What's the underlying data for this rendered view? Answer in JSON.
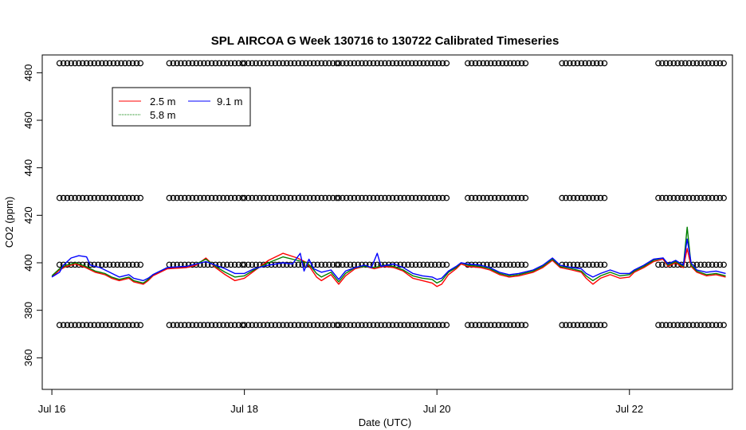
{
  "chart_data": {
    "type": "line",
    "title": "SPL AIRCOA G  Week 130716 to 130722  Calibrated Timeseries",
    "xlabel": "Date (UTC)",
    "ylabel": "CO2 (ppm)",
    "xlim": [
      -0.1,
      7.07
    ],
    "ylim": [
      346.7,
      487.5
    ],
    "x_ticks": [
      {
        "value": 0,
        "label": "Jul 16"
      },
      {
        "value": 2,
        "label": "Jul 18"
      },
      {
        "value": 4,
        "label": "Jul 20"
      },
      {
        "value": 6,
        "label": "Jul 22"
      }
    ],
    "y_ticks": [
      360,
      380,
      400,
      420,
      440,
      460,
      480
    ],
    "grid": false,
    "legend_position": "top-left",
    "series": [
      {
        "name": "2.5 m",
        "color": "#ff0000",
        "points": [
          [
            0.0,
            394.0
          ],
          [
            0.08,
            397.0
          ],
          [
            0.15,
            398.5
          ],
          [
            0.25,
            399.5
          ],
          [
            0.35,
            398.0
          ],
          [
            0.45,
            396.0
          ],
          [
            0.55,
            395.0
          ],
          [
            0.62,
            393.5
          ],
          [
            0.7,
            392.5
          ],
          [
            0.8,
            393.5
          ],
          [
            0.85,
            392.0
          ],
          [
            0.95,
            391.0
          ],
          [
            1.0,
            392.5
          ],
          [
            1.05,
            394.5
          ],
          [
            1.2,
            397.5
          ],
          [
            1.4,
            398.0
          ],
          [
            1.5,
            399.0
          ],
          [
            1.6,
            402.0
          ],
          [
            1.7,
            398.0
          ],
          [
            1.8,
            395.0
          ],
          [
            1.9,
            392.5
          ],
          [
            2.0,
            393.5
          ],
          [
            2.1,
            396.5
          ],
          [
            2.25,
            401.0
          ],
          [
            2.4,
            404.0
          ],
          [
            2.55,
            402.0
          ],
          [
            2.65,
            400.0
          ],
          [
            2.7,
            397.0
          ],
          [
            2.75,
            394.0
          ],
          [
            2.8,
            392.5
          ],
          [
            2.9,
            395.0
          ],
          [
            2.98,
            391.0
          ],
          [
            3.05,
            394.5
          ],
          [
            3.15,
            397.5
          ],
          [
            3.25,
            398.5
          ],
          [
            3.35,
            397.5
          ],
          [
            3.45,
            398.5
          ],
          [
            3.55,
            398.0
          ],
          [
            3.65,
            396.5
          ],
          [
            3.75,
            393.5
          ],
          [
            3.85,
            392.5
          ],
          [
            3.95,
            391.5
          ],
          [
            4.0,
            390.0
          ],
          [
            4.05,
            391.0
          ],
          [
            4.12,
            395.0
          ],
          [
            4.2,
            397.5
          ],
          [
            4.25,
            399.5
          ],
          [
            4.32,
            398.5
          ],
          [
            4.45,
            398.0
          ],
          [
            4.55,
            397.0
          ],
          [
            4.65,
            395.0
          ],
          [
            4.75,
            394.0
          ],
          [
            4.85,
            394.5
          ],
          [
            5.0,
            396.0
          ],
          [
            5.1,
            398.0
          ],
          [
            5.2,
            401.0
          ],
          [
            5.28,
            398.0
          ],
          [
            5.4,
            397.0
          ],
          [
            5.5,
            396.0
          ],
          [
            5.55,
            393.5
          ],
          [
            5.62,
            391.0
          ],
          [
            5.7,
            393.5
          ],
          [
            5.8,
            395.0
          ],
          [
            5.9,
            393.5
          ],
          [
            6.0,
            394.0
          ],
          [
            6.05,
            396.0
          ],
          [
            6.15,
            398.0
          ],
          [
            6.25,
            400.5
          ],
          [
            6.35,
            401.5
          ],
          [
            6.4,
            398.5
          ],
          [
            6.48,
            400.0
          ],
          [
            6.52,
            399.0
          ],
          [
            6.56,
            398.0
          ],
          [
            6.6,
            406.0
          ],
          [
            6.64,
            398.5
          ],
          [
            6.7,
            396.0
          ],
          [
            6.8,
            394.5
          ],
          [
            6.9,
            395.0
          ],
          [
            7.0,
            394.0
          ]
        ]
      },
      {
        "name": "5.8 m",
        "color": "#008000",
        "points": [
          [
            0.0,
            394.5
          ],
          [
            0.08,
            397.5
          ],
          [
            0.15,
            399.0
          ],
          [
            0.25,
            400.0
          ],
          [
            0.35,
            398.5
          ],
          [
            0.45,
            396.5
          ],
          [
            0.55,
            395.5
          ],
          [
            0.62,
            394.0
          ],
          [
            0.7,
            393.0
          ],
          [
            0.8,
            394.0
          ],
          [
            0.85,
            392.5
          ],
          [
            0.95,
            391.5
          ],
          [
            1.0,
            393.0
          ],
          [
            1.05,
            395.0
          ],
          [
            1.2,
            398.0
          ],
          [
            1.4,
            398.5
          ],
          [
            1.5,
            399.5
          ],
          [
            1.6,
            401.5
          ],
          [
            1.7,
            398.5
          ],
          [
            1.8,
            396.0
          ],
          [
            1.9,
            394.0
          ],
          [
            2.0,
            394.5
          ],
          [
            2.1,
            397.0
          ],
          [
            2.25,
            400.0
          ],
          [
            2.4,
            402.5
          ],
          [
            2.55,
            401.0
          ],
          [
            2.65,
            400.0
          ],
          [
            2.7,
            398.0
          ],
          [
            2.75,
            395.5
          ],
          [
            2.8,
            394.0
          ],
          [
            2.9,
            396.0
          ],
          [
            2.98,
            392.0
          ],
          [
            3.05,
            395.5
          ],
          [
            3.15,
            398.0
          ],
          [
            3.25,
            398.5
          ],
          [
            3.35,
            398.0
          ],
          [
            3.45,
            399.0
          ],
          [
            3.55,
            398.5
          ],
          [
            3.65,
            397.0
          ],
          [
            3.75,
            394.5
          ],
          [
            3.85,
            393.5
          ],
          [
            3.95,
            393.0
          ],
          [
            4.0,
            391.5
          ],
          [
            4.05,
            392.5
          ],
          [
            4.12,
            396.0
          ],
          [
            4.2,
            398.0
          ],
          [
            4.25,
            400.0
          ],
          [
            4.32,
            399.0
          ],
          [
            4.45,
            398.5
          ],
          [
            4.55,
            397.5
          ],
          [
            4.65,
            395.5
          ],
          [
            4.75,
            394.5
          ],
          [
            4.85,
            395.0
          ],
          [
            5.0,
            396.5
          ],
          [
            5.1,
            398.5
          ],
          [
            5.2,
            401.5
          ],
          [
            5.28,
            398.5
          ],
          [
            5.4,
            397.5
          ],
          [
            5.5,
            396.5
          ],
          [
            5.55,
            394.5
          ],
          [
            5.62,
            392.5
          ],
          [
            5.7,
            394.5
          ],
          [
            5.8,
            396.0
          ],
          [
            5.9,
            394.5
          ],
          [
            6.0,
            395.0
          ],
          [
            6.05,
            396.5
          ],
          [
            6.15,
            398.5
          ],
          [
            6.25,
            401.0
          ],
          [
            6.35,
            402.0
          ],
          [
            6.4,
            399.0
          ],
          [
            6.48,
            400.5
          ],
          [
            6.52,
            399.5
          ],
          [
            6.56,
            398.5
          ],
          [
            6.6,
            415.0
          ],
          [
            6.64,
            399.0
          ],
          [
            6.7,
            396.5
          ],
          [
            6.8,
            395.0
          ],
          [
            6.9,
            395.5
          ],
          [
            7.0,
            394.5
          ]
        ]
      },
      {
        "name": "9.1 m",
        "color": "#0000ff",
        "points": [
          [
            0.0,
            394.0
          ],
          [
            0.08,
            396.0
          ],
          [
            0.12,
            399.0
          ],
          [
            0.2,
            402.0
          ],
          [
            0.28,
            403.0
          ],
          [
            0.36,
            402.5
          ],
          [
            0.4,
            399.0
          ],
          [
            0.5,
            398.0
          ],
          [
            0.6,
            396.0
          ],
          [
            0.7,
            394.0
          ],
          [
            0.8,
            395.0
          ],
          [
            0.85,
            393.5
          ],
          [
            0.95,
            392.5
          ],
          [
            1.0,
            393.5
          ],
          [
            1.05,
            395.0
          ],
          [
            1.2,
            398.0
          ],
          [
            1.4,
            398.5
          ],
          [
            1.5,
            399.5
          ],
          [
            1.6,
            400.5
          ],
          [
            1.7,
            399.0
          ],
          [
            1.8,
            397.5
          ],
          [
            1.9,
            395.5
          ],
          [
            2.0,
            395.5
          ],
          [
            2.1,
            397.5
          ],
          [
            2.25,
            399.0
          ],
          [
            2.4,
            400.0
          ],
          [
            2.5,
            399.5
          ],
          [
            2.58,
            404.0
          ],
          [
            2.62,
            396.5
          ],
          [
            2.67,
            401.5
          ],
          [
            2.72,
            397.5
          ],
          [
            2.8,
            396.0
          ],
          [
            2.9,
            397.0
          ],
          [
            2.98,
            393.0
          ],
          [
            3.05,
            396.5
          ],
          [
            3.15,
            398.0
          ],
          [
            3.25,
            399.0
          ],
          [
            3.32,
            398.0
          ],
          [
            3.38,
            404.0
          ],
          [
            3.42,
            398.5
          ],
          [
            3.55,
            399.5
          ],
          [
            3.65,
            398.0
          ],
          [
            3.75,
            395.5
          ],
          [
            3.85,
            394.5
          ],
          [
            3.95,
            394.0
          ],
          [
            4.0,
            393.0
          ],
          [
            4.05,
            393.5
          ],
          [
            4.12,
            396.5
          ],
          [
            4.2,
            398.5
          ],
          [
            4.25,
            400.0
          ],
          [
            4.32,
            399.5
          ],
          [
            4.45,
            399.0
          ],
          [
            4.55,
            398.0
          ],
          [
            4.65,
            396.0
          ],
          [
            4.75,
            395.0
          ],
          [
            4.85,
            395.5
          ],
          [
            5.0,
            397.0
          ],
          [
            5.1,
            399.0
          ],
          [
            5.2,
            402.0
          ],
          [
            5.28,
            399.0
          ],
          [
            5.4,
            398.0
          ],
          [
            5.5,
            397.5
          ],
          [
            5.55,
            395.5
          ],
          [
            5.62,
            394.0
          ],
          [
            5.7,
            395.5
          ],
          [
            5.8,
            397.0
          ],
          [
            5.9,
            395.5
          ],
          [
            6.0,
            395.5
          ],
          [
            6.05,
            397.0
          ],
          [
            6.15,
            399.0
          ],
          [
            6.25,
            401.5
          ],
          [
            6.35,
            402.0
          ],
          [
            6.4,
            399.5
          ],
          [
            6.48,
            401.0
          ],
          [
            6.52,
            400.0
          ],
          [
            6.56,
            399.0
          ],
          [
            6.6,
            410.0
          ],
          [
            6.64,
            400.0
          ],
          [
            6.7,
            397.0
          ],
          [
            6.8,
            396.0
          ],
          [
            6.9,
            396.5
          ],
          [
            7.0,
            395.5
          ]
        ]
      }
    ],
    "calibration_points": {
      "name": "calibration",
      "marker": "open-circle",
      "levels": [
        484,
        427.3,
        399.2,
        373.8
      ],
      "segments": [
        [
          0.08,
          0.95
        ],
        [
          1.22,
          2.0
        ],
        [
          2.0,
          2.98
        ],
        [
          2.98,
          4.1
        ],
        [
          4.32,
          4.95
        ],
        [
          5.3,
          5.75
        ],
        [
          6.3,
          6.98
        ]
      ],
      "spacing": 0.04
    }
  },
  "legend": {
    "items": [
      {
        "label": "2.5 m",
        "color": "#ff0000"
      },
      {
        "label": "5.8 m",
        "color": "#008000"
      },
      {
        "label": "9.1 m",
        "color": "#0000ff"
      }
    ]
  }
}
